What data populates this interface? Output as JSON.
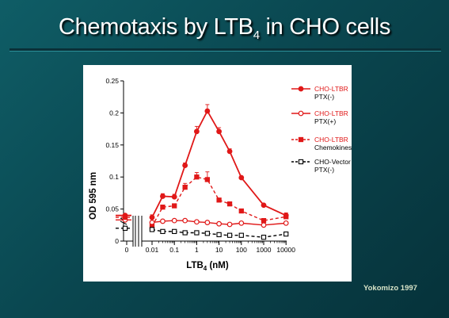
{
  "slide": {
    "title_main": "Chemotaxis by LTB",
    "title_sub": "4",
    "title_rest": " in CHO cells",
    "credit": "Yokomizo 1997"
  },
  "chart_data": {
    "type": "line",
    "xlabel_main": "LTB",
    "xlabel_sub": "4",
    "xlabel_rest": " (nM)",
    "ylabel": "OD 595 nm",
    "x_scale": "log",
    "x_ticks": [
      "0",
      "0.01",
      "0.1",
      "1",
      "10",
      "100",
      "1000",
      "10000"
    ],
    "x_tick_values": [
      0,
      0.01,
      0.1,
      1,
      10,
      100,
      1000,
      10000
    ],
    "y_ticks": [
      "0",
      "0.05",
      "0.1",
      "0.15",
      "0.2",
      "0.25"
    ],
    "ylim": [
      0,
      0.25
    ],
    "grid": false,
    "legend_position": "right",
    "series": [
      {
        "name": "CHO-LTBR",
        "name_line2": "PTX(-)",
        "color": "#e01818",
        "line": "solid",
        "marker": "filled-circle",
        "zero_value": 0.04,
        "x": [
          0.01,
          0.03,
          0.1,
          0.3,
          1,
          3,
          10,
          30,
          100,
          1000,
          10000
        ],
        "values": [
          0.037,
          0.07,
          0.069,
          0.118,
          0.171,
          0.203,
          0.171,
          0.14,
          0.099,
          0.056,
          0.04
        ],
        "errors": [
          0.004,
          0.004,
          0.004,
          0.004,
          0.008,
          0.01,
          0.006,
          0.004,
          0.002,
          0.002,
          0.004
        ]
      },
      {
        "name": "CHO-LTBR",
        "name_line2": "PTX(+)",
        "color": "#e01818",
        "line": "solid",
        "marker": "open-circle",
        "zero_value": 0.033,
        "x": [
          0.01,
          0.03,
          0.1,
          0.3,
          1,
          3,
          10,
          30,
          100,
          1000,
          10000
        ],
        "values": [
          0.029,
          0.031,
          0.032,
          0.032,
          0.03,
          0.029,
          0.027,
          0.026,
          0.028,
          0.025,
          0.028
        ],
        "errors": [
          0.002,
          0.002,
          0.002,
          0.002,
          0.002,
          0.002,
          0.002,
          0.002,
          0.002,
          0.002,
          0.002
        ]
      },
      {
        "name": "CHO-LTBR",
        "name_line2": "Chemokinesis",
        "color": "#e01818",
        "line": "dashed",
        "marker": "filled-square",
        "zero_value": 0.037,
        "x": [
          0.01,
          0.03,
          0.1,
          0.3,
          1,
          3,
          10,
          30,
          100,
          1000,
          10000
        ],
        "values": [
          0.023,
          0.053,
          0.055,
          0.084,
          0.1,
          0.096,
          0.064,
          0.058,
          0.047,
          0.032,
          0.038
        ],
        "errors": [
          0.003,
          0.003,
          0.003,
          0.006,
          0.007,
          0.012,
          0.002,
          0.002,
          0.002,
          0.002,
          0.002
        ]
      },
      {
        "name": "CHO-Vector",
        "name_line2": "PTX(-)",
        "color": "#000000",
        "line": "dashed",
        "marker": "open-square",
        "zero_value": 0.02,
        "x": [
          0.01,
          0.03,
          0.1,
          0.3,
          1,
          3,
          10,
          30,
          100,
          1000,
          10000
        ],
        "values": [
          0.018,
          0.015,
          0.015,
          0.013,
          0.013,
          0.012,
          0.01,
          0.009,
          0.009,
          0.006,
          0.011
        ],
        "errors": [
          0.001,
          0.001,
          0.001,
          0.001,
          0.001,
          0.001,
          0.001,
          0.001,
          0.001,
          0.001,
          0.002
        ]
      }
    ]
  }
}
